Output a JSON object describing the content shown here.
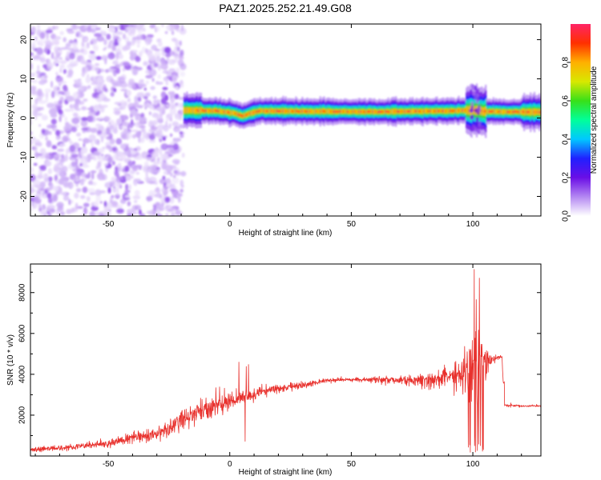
{
  "chart_data": [
    {
      "type": "heatmap",
      "title": "PAZ1.2025.252.21.49.G08",
      "xlabel": "Height of straight line (km)",
      "ylabel": "Frequency (Hz)",
      "xlim": [
        -82,
        128
      ],
      "ylim": [
        -25,
        24
      ],
      "xticks": [
        -50,
        0,
        50,
        100
      ],
      "xtick_labels": [
        "-50",
        "0",
        "50",
        "100"
      ],
      "yticks": [
        20,
        10,
        0,
        -10,
        -20
      ],
      "ytick_labels": [
        "20",
        "10",
        "0",
        "-10",
        "-20"
      ],
      "noise_region_x": [
        -82,
        -19
      ],
      "signal_band": {
        "x_start": -19,
        "x_end": 128,
        "center_hz": [
          {
            "x": -19,
            "y": 2.0
          },
          {
            "x": -5,
            "y": 1.8
          },
          {
            "x": 2,
            "y": 1.2
          },
          {
            "x": 5,
            "y": 0.5
          },
          {
            "x": 8,
            "y": 1.2
          },
          {
            "x": 12,
            "y": 1.8
          },
          {
            "x": 30,
            "y": 1.7
          },
          {
            "x": 60,
            "y": 1.6
          },
          {
            "x": 90,
            "y": 1.8
          },
          {
            "x": 100,
            "y": 2.0
          },
          {
            "x": 105,
            "y": 1.7
          },
          {
            "x": 128,
            "y": 1.5
          }
        ],
        "halfwidth_hz": 1.6
      },
      "colorbar": {
        "label": "Normalized spectral amplitude",
        "range": [
          0,
          1
        ],
        "ticks": [
          0.0,
          0.2,
          0.4,
          0.6,
          0.8
        ],
        "tick_labels": [
          "0.0",
          "0.2",
          "0.4",
          "0.6",
          "0.8"
        ],
        "colors": [
          "#ffffff",
          "#b487f2",
          "#6a0ee6",
          "#2020ff",
          "#00c8ff",
          "#00ff9a",
          "#38e018",
          "#d8e800",
          "#ffb000",
          "#ff3000",
          "#ff2466"
        ]
      }
    },
    {
      "type": "line",
      "xlabel": "Height of straight line (km)",
      "ylabel": "SNR (10 * v/v)",
      "xlim": [
        -82,
        128
      ],
      "ylim": [
        0,
        9400
      ],
      "xticks": [
        -50,
        0,
        50,
        100
      ],
      "xtick_labels": [
        "-50",
        "0",
        "50",
        "100"
      ],
      "yticks": [
        2000,
        4000,
        6000,
        8000
      ],
      "ytick_labels": [
        "2000",
        "4000",
        "6000",
        "8000"
      ],
      "line_color": "#e8302c",
      "series": [
        {
          "name": "SNR",
          "x": [
            -82,
            -70,
            -60,
            -50,
            -40,
            -30,
            -25,
            -20,
            -15,
            -10,
            -5,
            0,
            5,
            10,
            15,
            20,
            25,
            30,
            40,
            50,
            60,
            70,
            80,
            90,
            95,
            98,
            100,
            102,
            104,
            106,
            108,
            110,
            112,
            113,
            120,
            128
          ],
          "y": [
            300,
            400,
            500,
            600,
            900,
            1100,
            1300,
            1800,
            2000,
            2300,
            2500,
            2700,
            2800,
            3000,
            3200,
            3300,
            3400,
            3500,
            3700,
            3750,
            3750,
            3700,
            3700,
            3900,
            4100,
            4200,
            4400,
            4600,
            4700,
            4800,
            4800,
            4850,
            4850,
            2500,
            2450,
            2450
          ],
          "noise_amplitude": [
            250,
            250,
            250,
            300,
            450,
            550,
            650,
            900,
            900,
            1000,
            900,
            800,
            650,
            550,
            450,
            380,
            320,
            280,
            200,
            180,
            220,
            400,
            650,
            800,
            1200,
            2600,
            3600,
            3600,
            2600,
            1300,
            400,
            200,
            150,
            120,
            80,
            80
          ]
        }
      ]
    }
  ]
}
